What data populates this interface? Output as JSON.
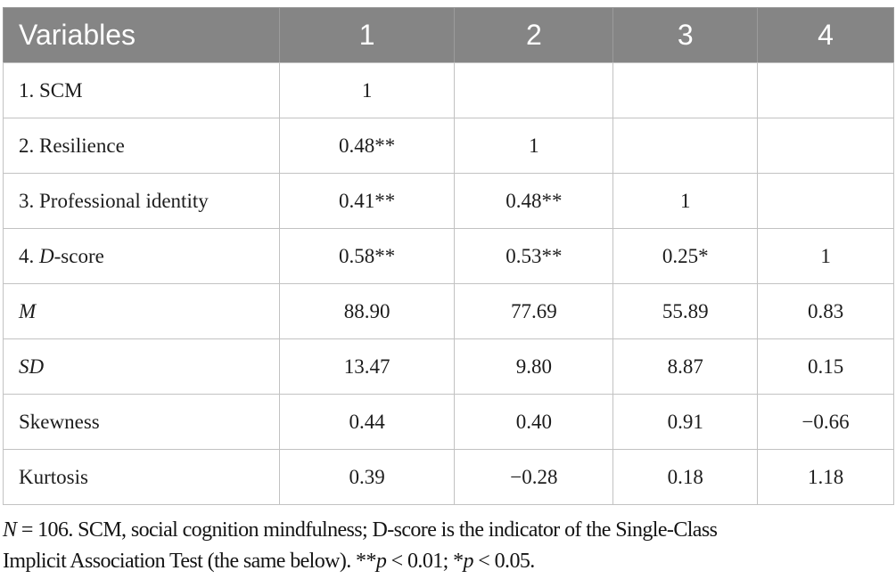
{
  "table": {
    "header": {
      "variables_label": "Variables",
      "columns": [
        "1",
        "2",
        "3",
        "4"
      ]
    },
    "rows": [
      {
        "label": [
          {
            "t": "1. SCM"
          }
        ],
        "cells": [
          "1",
          "",
          "",
          ""
        ]
      },
      {
        "label": [
          {
            "t": "2. Resilience"
          }
        ],
        "cells": [
          "0.48**",
          "1",
          "",
          ""
        ]
      },
      {
        "label": [
          {
            "t": "3. Professional identity"
          }
        ],
        "cells": [
          "0.41**",
          "0.48**",
          "1",
          ""
        ]
      },
      {
        "label": [
          {
            "t": "4. "
          },
          {
            "t": "D",
            "i": true
          },
          {
            "t": "-score"
          }
        ],
        "cells": [
          "0.58**",
          "0.53**",
          "0.25*",
          "1"
        ]
      },
      {
        "label": [
          {
            "t": "M",
            "i": true
          }
        ],
        "cells": [
          "88.90",
          "77.69",
          "55.89",
          "0.83"
        ]
      },
      {
        "label": [
          {
            "t": "SD",
            "i": true
          }
        ],
        "cells": [
          "13.47",
          "9.80",
          "8.87",
          "0.15"
        ]
      },
      {
        "label": [
          {
            "t": "Skewness"
          }
        ],
        "cells": [
          "0.44",
          "0.40",
          "0.91",
          "−0.66"
        ]
      },
      {
        "label": [
          {
            "t": "Kurtosis"
          }
        ],
        "cells": [
          "0.39",
          "−0.28",
          "0.18",
          "1.18"
        ]
      }
    ]
  },
  "footnote": {
    "lines": [
      [
        {
          "t": "N",
          "i": true
        },
        {
          "t": " = 106. SCM, social cognition mindfulness; D-score is the indicator of the Single-Class"
        }
      ],
      [
        {
          "t": "Implicit Association Test (the same below). **"
        },
        {
          "t": "p",
          "i": true
        },
        {
          "t": " < 0.01; *"
        },
        {
          "t": "p",
          "i": true
        },
        {
          "t": " < 0.05."
        }
      ]
    ]
  },
  "colors": {
    "header_bg": "#858585",
    "header_text": "#ffffff",
    "body_text": "#1c1c1c",
    "border": "#c2c2c2"
  }
}
